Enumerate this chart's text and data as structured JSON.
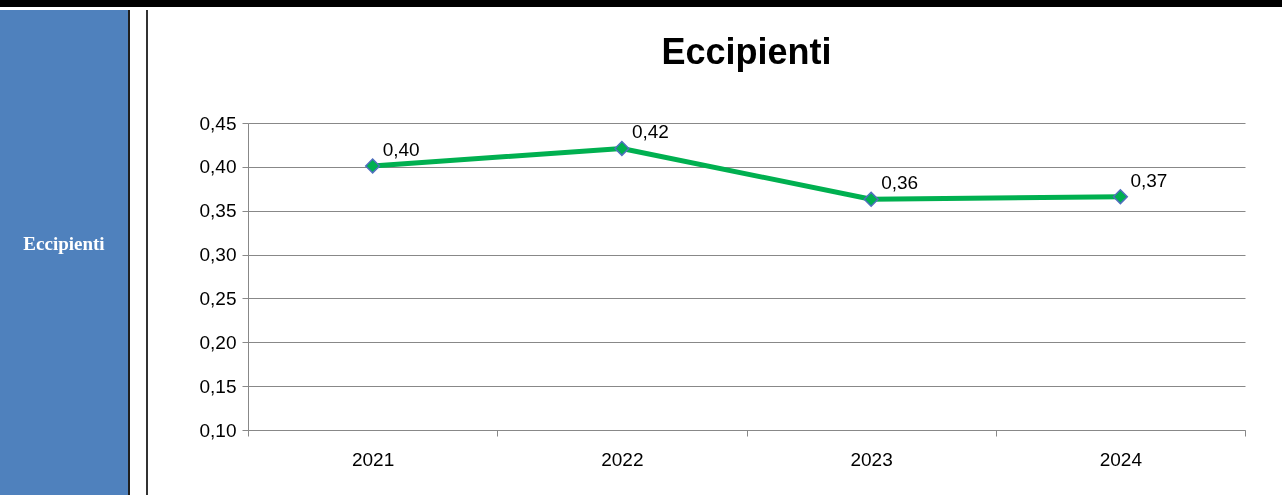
{
  "chart_data": {
    "type": "line",
    "title": "Eccipienti",
    "annotations": [
      "Eccipienti"
    ],
    "categories": [
      "2021",
      "2022",
      "2023",
      "2024"
    ],
    "series": [
      {
        "color": "#00b050",
        "values": [
          0.401,
          0.421,
          0.363,
          0.366
        ],
        "value_labels": [
          "0,40",
          "0,42",
          "0,36",
          "0,37"
        ]
      }
    ],
    "ylim": [
      0.1,
      0.45
    ],
    "yticks": [
      {
        "value": 0.1,
        "label": "0,10"
      },
      {
        "value": 0.15,
        "label": "0,15"
      },
      {
        "value": 0.2,
        "label": "0,20"
      },
      {
        "value": 0.25,
        "label": "0,25"
      },
      {
        "value": 0.3,
        "label": "0,30"
      },
      {
        "value": 0.35,
        "label": "0,35"
      },
      {
        "value": 0.4,
        "label": "0,40"
      },
      {
        "value": 0.45,
        "label": "0,45"
      }
    ],
    "grid": "y",
    "marker": "diamond",
    "line_style": "solid"
  }
}
